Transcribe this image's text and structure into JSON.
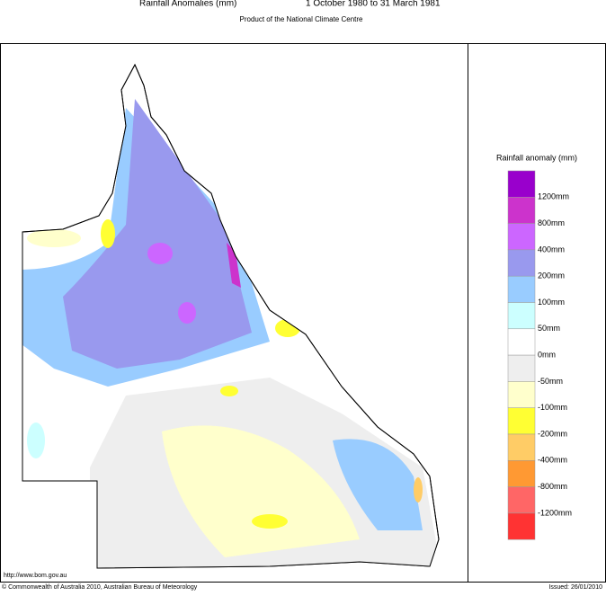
{
  "header": {
    "title": "Rainfall Anomalies (mm)",
    "period": "1 October 1980 to 31 March 1981",
    "subtitle": "Product of the National Climate Centre"
  },
  "legend": {
    "title": "Rainfall anomaly (mm)",
    "colors": [
      "#9900cc",
      "#cc33cc",
      "#cc66ff",
      "#9999ee",
      "#99ccff",
      "#ccffff",
      "#ffffff",
      "#eeeeee",
      "#ffffcc",
      "#ffff33",
      "#ffcc66",
      "#ff9933",
      "#ff6666",
      "#ff3333"
    ],
    "labels": [
      "1200mm",
      "800mm",
      "400mm",
      "200mm",
      "100mm",
      "50mm",
      "0mm",
      "-50mm",
      "-100mm",
      "-200mm",
      "-400mm",
      "-800mm",
      "-1200mm"
    ]
  },
  "footer": {
    "url": "http://www.bom.gov.au",
    "copyright": "© Commonwealth of Australia 2010, Australian Bureau of Meteorology",
    "issued": "Issued: 26/01/2010"
  }
}
